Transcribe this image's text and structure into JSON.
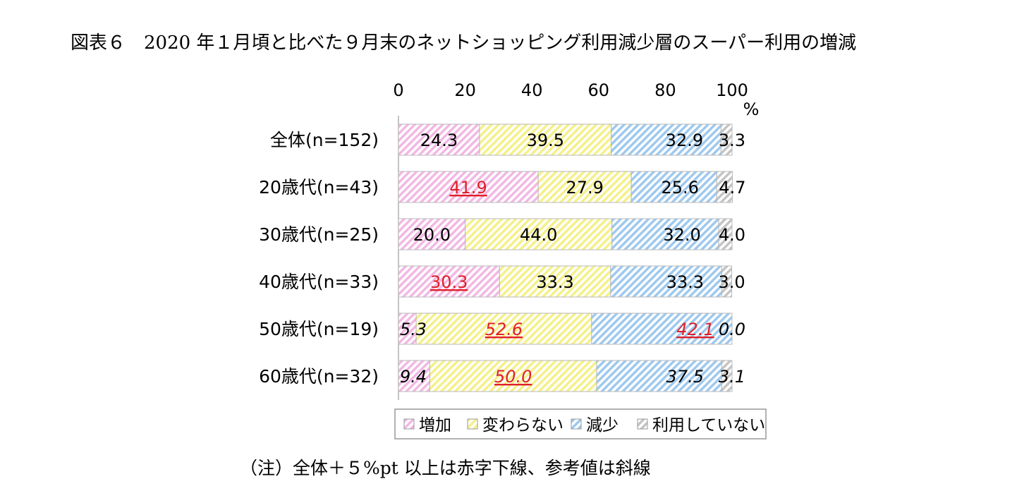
{
  "title": "図表６　2020 年１月頃と比べた９月末のネットショッピング利用減少層のスーパー利用の増減",
  "note": "（注）全体＋５%pt 以上は赤字下線、参考値は斜線",
  "chart_data": {
    "type": "bar",
    "orientation": "horizontal",
    "stacked": true,
    "xlim": [
      0,
      100
    ],
    "xticks": [
      "0",
      "20",
      "40",
      "60",
      "80",
      "100"
    ],
    "unit": "%",
    "categories": [
      "全体(n=152)",
      "20歳代(n=43)",
      "30歳代(n=25)",
      "40歳代(n=33)",
      "50歳代(n=19)",
      "60歳代(n=32)"
    ],
    "series": [
      {
        "name": "増加",
        "color": "#f2b8e4",
        "values": [
          24.3,
          41.9,
          20.0,
          30.3,
          5.3,
          9.4
        ],
        "labels": [
          "24.3",
          "41.9",
          "20.0",
          "30.3",
          "5.3",
          "9.4"
        ]
      },
      {
        "name": "変わらない",
        "color": "#f5f08a",
        "values": [
          39.5,
          27.9,
          44.0,
          33.3,
          52.6,
          50.0
        ],
        "labels": [
          "39.5",
          "27.9",
          "44.0",
          "33.3",
          "52.6",
          "50.0"
        ]
      },
      {
        "name": "減少",
        "color": "#9ec9ee",
        "values": [
          32.9,
          25.6,
          32.0,
          33.3,
          42.1,
          37.5
        ],
        "labels": [
          "32.9",
          "25.6",
          "32.0",
          "33.3",
          "42.1",
          "37.5"
        ]
      },
      {
        "name": "利用していない",
        "color": "#c4c4c4",
        "values": [
          3.3,
          4.7,
          4.0,
          3.0,
          0.0,
          3.1
        ],
        "labels": [
          "3.3",
          "4.7",
          "4.0",
          "3.0",
          "0.0",
          "3.1"
        ]
      }
    ],
    "highlighted_red_underlined": [
      {
        "category": "20歳代(n=43)",
        "series": "増加"
      },
      {
        "category": "40歳代(n=33)",
        "series": "増加"
      },
      {
        "category": "50歳代(n=19)",
        "series": "変わらない"
      },
      {
        "category": "50歳代(n=19)",
        "series": "減少"
      },
      {
        "category": "60歳代(n=32)",
        "series": "変わらない"
      }
    ],
    "reference_italic_categories": [
      "50歳代(n=19)",
      "60歳代(n=32)"
    ],
    "legend_position": "bottom"
  }
}
